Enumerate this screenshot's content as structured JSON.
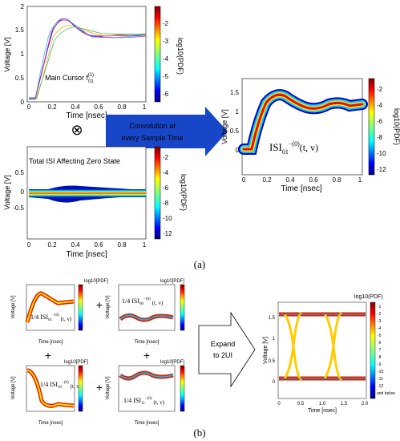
{
  "colors": {
    "arrow_fill": "#1746c8",
    "arrow_text": "#ffffff",
    "cb_top": "#8b0000",
    "cb_bottom": "#00008b"
  },
  "panel_a": {
    "tl": {
      "ylabel": "Voltage [V]",
      "xlabel": "Time [nsec]",
      "yticks": [
        "0",
        "0.5",
        "1",
        "1.5",
        "2"
      ],
      "xticks": [
        "0",
        "0.2",
        "0.4",
        "0.6",
        "0.8",
        "1"
      ],
      "label": "Main Cursor f",
      "label_sub": "01",
      "label_sup": "(1)",
      "cb_label": "log10(PDF)",
      "cb_ticks": [
        "-2",
        "-3",
        "-4",
        "-5",
        "-6"
      ]
    },
    "bl": {
      "title": "Total ISI Affecting Zero State",
      "ylabel": "Voltage [V]",
      "xlabel": "Time [nsec]",
      "yticks": [
        "0",
        "0.5",
        "1",
        "1.5",
        "2"
      ],
      "xticks": [
        "0",
        "0.2",
        "0.4",
        "0.6",
        "0.8",
        "1"
      ],
      "cb_label": "log10(PDF)",
      "cb_ticks": [
        "-2",
        "-4",
        "-6",
        "-8",
        "-10",
        "-12"
      ]
    },
    "right": {
      "ylabel": "Voltage [V]",
      "xlabel": "Time [nsec]",
      "yticks": [
        "0",
        "0.5",
        "1",
        "1.5"
      ],
      "xticks": [
        "0",
        "0.2",
        "0.4",
        "0.6",
        "0.8",
        "1"
      ],
      "label": "ISI",
      "label_sub": "01",
      "label_sup": "−(0)",
      "label_tail": "(t, v)",
      "cb_label": "log10(PDF)",
      "cb_ticks": [
        "-2",
        "-4",
        "-6",
        "-8",
        "-10",
        "-12"
      ]
    },
    "operator_symbol": "⊗",
    "arrow_text_line1": "Convolution at",
    "arrow_text_line2": "every Sample Time",
    "caption": "(a)"
  },
  "panel_b": {
    "small_ylabel": "Voltage [V]",
    "small_xlabel": "Time [nsec]",
    "small_xticks": [
      "0",
      "0.2",
      "0.4",
      "0.6",
      "0.8",
      "1"
    ],
    "small_yticks": [
      "0",
      "0.5",
      "1",
      "1.5"
    ],
    "small_cb_label": "log10[PDF]",
    "small_cb_ticks": [
      "-2",
      "-4",
      "-6",
      "-8",
      "-10",
      "-12"
    ],
    "plots": [
      {
        "frac": "1",
        "den": "4",
        "isi": "ISI",
        "sub": "01",
        "sup": "−(0)",
        "tail": "(t, v)"
      },
      {
        "frac": "1",
        "den": "4",
        "isi": "ISI",
        "sub": "00",
        "sup": "−(0)",
        "tail": "(t, v)"
      },
      {
        "frac": "1",
        "den": "4",
        "isi": "ISI",
        "sub": "10",
        "sup": "−(0)",
        "tail": "(t, v)"
      },
      {
        "frac": "1",
        "den": "4",
        "isi": "ISI",
        "sub": "11",
        "sup": "−(0)",
        "tail": "(t, v)"
      }
    ],
    "plus": "+",
    "arrow_line1": "Expand",
    "arrow_line2": "to 2UI",
    "eye": {
      "ylabel": "Voltage [V]",
      "xlabel": "Time [nsec]",
      "yticks": [
        "0",
        "0.5",
        "1",
        "1.5"
      ],
      "xticks": [
        "0",
        "0.5",
        "1.0",
        "1.5",
        "2.0"
      ],
      "cb_label": "log10(PDF)",
      "cb_ticks": [
        "-1",
        "-2",
        "-3",
        "-4",
        "-5",
        "-6",
        "-7",
        "-8",
        "-9",
        "-10",
        "-11",
        "-12"
      ],
      "cb_extra": "and below"
    },
    "caption": "(b)"
  }
}
